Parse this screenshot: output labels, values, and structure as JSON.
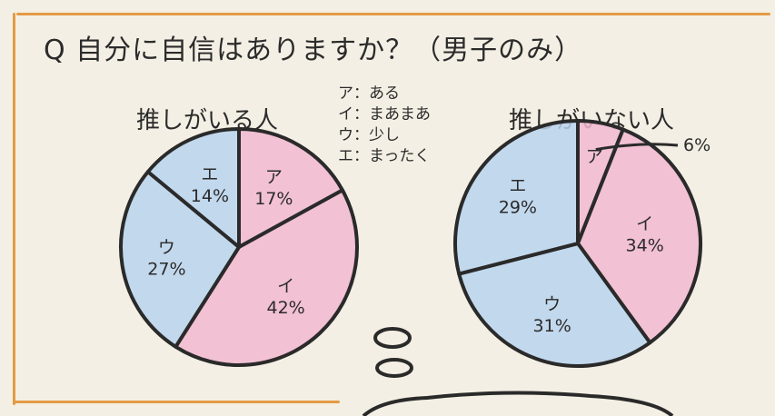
{
  "question": "Q 自分に自信はありますか？（男子のみ）",
  "legend": [
    {
      "key": "ア",
      "label": "ある"
    },
    {
      "key": "イ",
      "label": "まあまあ"
    },
    {
      "key": "ウ",
      "label": "少し"
    },
    {
      "key": "エ",
      "label": "まったく"
    }
  ],
  "colors": {
    "ア": "#f1b9d0",
    "イ": "#f1b9d0",
    "ウ": "#b8d4ee",
    "エ": "#b8d4ee",
    "outline": "#2a2a2a",
    "frame": "#e39a45"
  },
  "chart_data": [
    {
      "type": "pie",
      "title": "推しがいる人",
      "categories": [
        "ア",
        "イ",
        "ウ",
        "エ"
      ],
      "values": [
        17,
        42,
        27,
        14
      ],
      "labels": [
        "ア 17%",
        "イ 42%",
        "ウ 27%",
        "エ 14%"
      ]
    },
    {
      "type": "pie",
      "title": "推しがいない人",
      "categories": [
        "ア",
        "イ",
        "ウ",
        "エ"
      ],
      "values": [
        6,
        34,
        31,
        29
      ],
      "labels": [
        "ア",
        "イ 34%",
        "ウ 31%",
        "エ 29%"
      ],
      "callout": "6%"
    }
  ]
}
